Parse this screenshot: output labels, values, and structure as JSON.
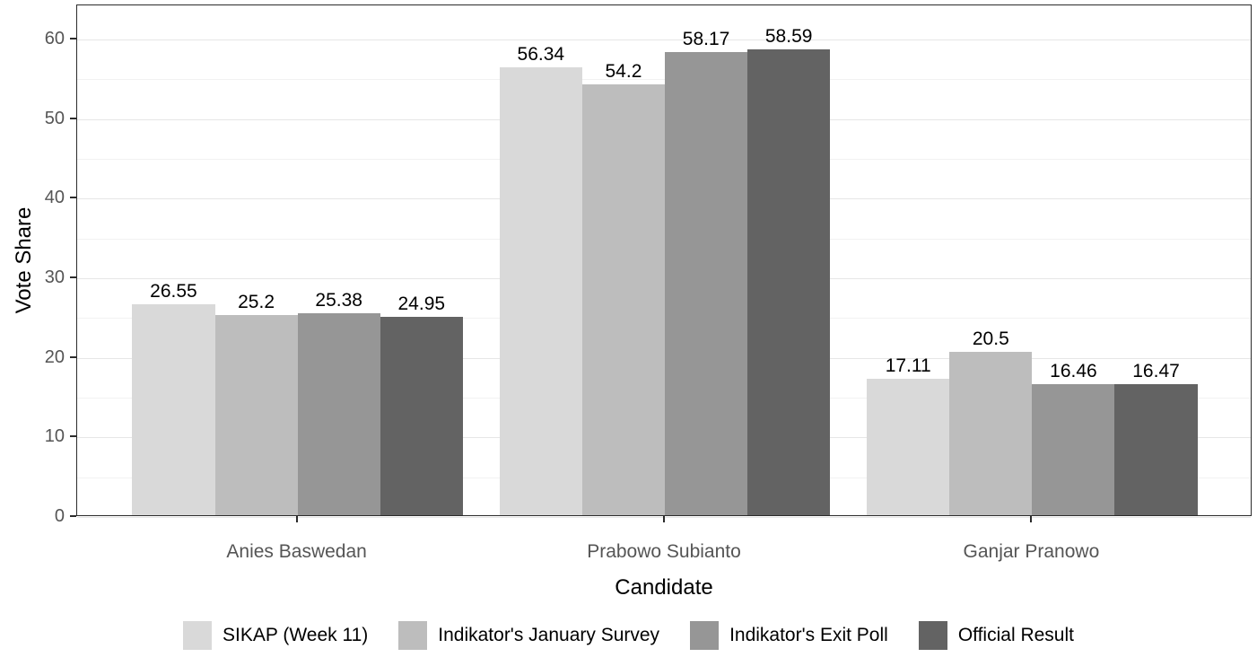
{
  "chart_data": {
    "type": "bar",
    "title": "",
    "xlabel": "Candidate",
    "ylabel": "Vote Share",
    "categories": [
      "Anies Baswedan",
      "Prabowo Subianto",
      "Ganjar Pranowo"
    ],
    "series": [
      {
        "name": "SIKAP (Week 11)",
        "color": "#d9d9d9",
        "values": [
          26.55,
          56.34,
          17.11
        ]
      },
      {
        "name": "Indikator's January Survey",
        "color": "#bdbdbd",
        "values": [
          25.2,
          54.2,
          20.5
        ]
      },
      {
        "name": "Indikator's Exit Poll",
        "color": "#969696",
        "values": [
          25.38,
          58.17,
          16.46
        ]
      },
      {
        "name": "Official Result",
        "color": "#636363",
        "values": [
          24.95,
          58.59,
          16.47
        ]
      }
    ],
    "bar_value_labels": [
      [
        "26.55",
        "25.2",
        "25.38",
        "24.95"
      ],
      [
        "56.34",
        "54.2",
        "58.17",
        "58.59"
      ],
      [
        "17.11",
        "20.5",
        "16.46",
        "16.47"
      ]
    ],
    "yticks": [
      0,
      10,
      20,
      30,
      40,
      50,
      60
    ],
    "yticks_minor": [
      5,
      15,
      25,
      35,
      45,
      55
    ],
    "ylim": [
      0,
      64.3
    ],
    "grid": true,
    "legend_position": "bottom",
    "panel_border_color": "#2b2b2b",
    "axis_text_color": "#555555"
  }
}
